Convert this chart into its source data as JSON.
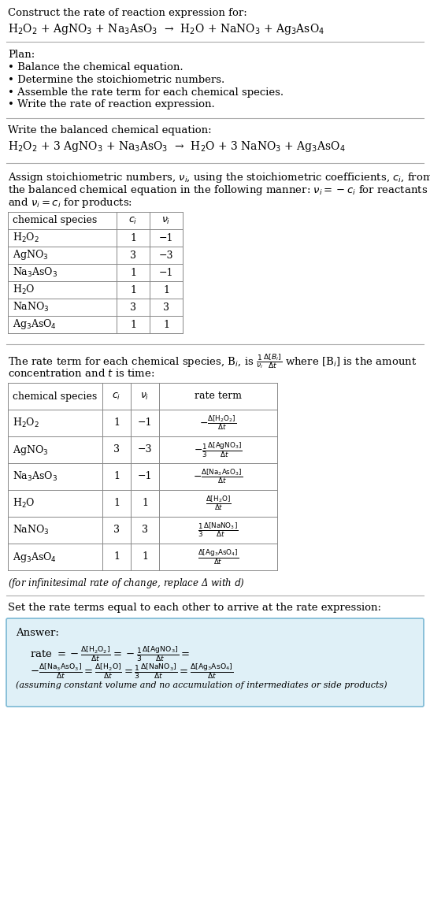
{
  "bg_color": "#ffffff",
  "text_color": "#000000",
  "title_line": "Construct the rate of reaction expression for:",
  "reaction_unbalanced": "H$_2$O$_2$ + AgNO$_3$ + Na$_3$AsO$_3$  →  H$_2$O + NaNO$_3$ + Ag$_3$AsO$_4$",
  "plan_header": "Plan:",
  "plan_items": [
    "• Balance the chemical equation.",
    "• Determine the stoichiometric numbers.",
    "• Assemble the rate term for each chemical species.",
    "• Write the rate of reaction expression."
  ],
  "balanced_header": "Write the balanced chemical equation:",
  "reaction_balanced": "H$_2$O$_2$ + 3 AgNO$_3$ + Na$_3$AsO$_3$  →  H$_2$O + 3 NaNO$_3$ + Ag$_3$AsO$_4$",
  "assign_text1": "Assign stoichiometric numbers, $\\nu_i$, using the stoichiometric coefficients, $c_i$, from",
  "assign_text2": "the balanced chemical equation in the following manner: $\\nu_i = -c_i$ for reactants",
  "assign_text3": "and $\\nu_i = c_i$ for products:",
  "table1_headers": [
    "chemical species",
    "$c_i$",
    "$\\nu_i$"
  ],
  "table1_rows": [
    [
      "H$_2$O$_2$",
      "1",
      "−1"
    ],
    [
      "AgNO$_3$",
      "3",
      "−3"
    ],
    [
      "Na$_3$AsO$_3$",
      "1",
      "−1"
    ],
    [
      "H$_2$O",
      "1",
      "1"
    ],
    [
      "NaNO$_3$",
      "3",
      "3"
    ],
    [
      "Ag$_3$AsO$_4$",
      "1",
      "1"
    ]
  ],
  "rate_term_text1": "The rate term for each chemical species, B$_i$, is $\\frac{1}{\\nu_i}\\frac{\\Delta[B_i]}{\\Delta t}$ where [B$_i$] is the amount",
  "rate_term_text2": "concentration and $t$ is time:",
  "table2_headers": [
    "chemical species",
    "$c_i$",
    "$\\nu_i$",
    "rate term"
  ],
  "table2_rows": [
    [
      "H$_2$O$_2$",
      "1",
      "−1",
      "$-\\frac{\\Delta[\\mathrm{H_2O_2}]}{\\Delta t}$"
    ],
    [
      "AgNO$_3$",
      "3",
      "−3",
      "$-\\frac{1}{3}\\frac{\\Delta[\\mathrm{AgNO_3}]}{\\Delta t}$"
    ],
    [
      "Na$_3$AsO$_3$",
      "1",
      "−1",
      "$-\\frac{\\Delta[\\mathrm{Na_3AsO_3}]}{\\Delta t}$"
    ],
    [
      "H$_2$O",
      "1",
      "1",
      "$\\frac{\\Delta[\\mathrm{H_2O}]}{\\Delta t}$"
    ],
    [
      "NaNO$_3$",
      "3",
      "3",
      "$\\frac{1}{3}\\frac{\\Delta[\\mathrm{NaNO_3}]}{\\Delta t}$"
    ],
    [
      "Ag$_3$AsO$_4$",
      "1",
      "1",
      "$\\frac{\\Delta[\\mathrm{Ag_3AsO_4}]}{\\Delta t}$"
    ]
  ],
  "infinitesimal_note": "(for infinitesimal rate of change, replace Δ with $d$)",
  "set_rate_text": "Set the rate terms equal to each other to arrive at the rate expression:",
  "answer_box_color": "#dff0f7",
  "answer_border_color": "#7ab8d4",
  "answer_label": "Answer:",
  "answer_note": "(assuming constant volume and no accumulation of intermediates or side products)"
}
